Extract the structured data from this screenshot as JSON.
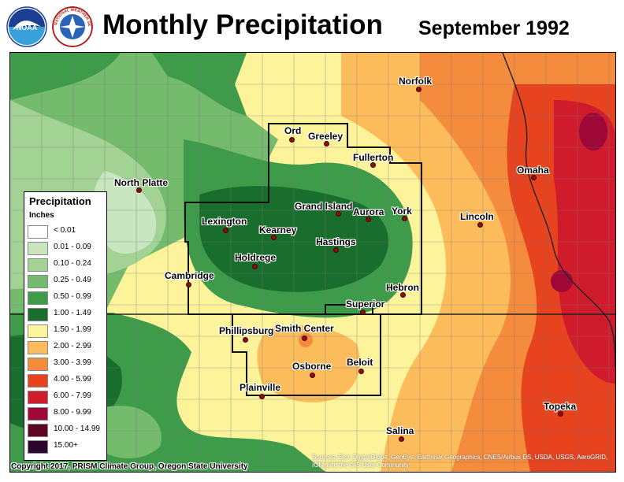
{
  "header": {
    "title": "Monthly Precipitation",
    "subtitle": "September 1992"
  },
  "logos": {
    "left_icon": "noaa-logo",
    "right_icon": "national-weather-service-logo",
    "noaa_text": "NOAA",
    "nws_text": "NATIONAL WEATHER SERVICE"
  },
  "colors": {
    "lt001": "#ffffff",
    "r0_01": "#c8e6c0",
    "r0_10": "#a3d394",
    "r0_25": "#74bb6d",
    "r0_50": "#3e9b4a",
    "r1_00": "#1a6e2d",
    "r1_50": "#fdf39a",
    "r2_00": "#fdbc5c",
    "r3_00": "#f58b3d",
    "r4_00": "#e8431f",
    "r6_00": "#cf1b2c",
    "r8_00": "#9e0836",
    "r10_00": "#5e0722",
    "r15_00": "#2e0530"
  },
  "legend": {
    "title": "Precipitation",
    "units": "Inches",
    "items": [
      {
        "label": "< 0.01",
        "color": "#ffffff"
      },
      {
        "label": "0.01 - 0.09",
        "color": "#c8e6c0"
      },
      {
        "label": "0.10 - 0.24",
        "color": "#a3d394"
      },
      {
        "label": "0.25 - 0.49",
        "color": "#74bb6d"
      },
      {
        "label": "0.50 - 0.99",
        "color": "#3e9b4a"
      },
      {
        "label": "1.00 - 1.49",
        "color": "#1a6e2d"
      },
      {
        "label": "1.50 - 1.99",
        "color": "#fdf39a"
      },
      {
        "label": "2.00 - 2.99",
        "color": "#fdbc5c"
      },
      {
        "label": "3.00 - 3.99",
        "color": "#f58b3d"
      },
      {
        "label": "4.00 - 5.99",
        "color": "#e8431f"
      },
      {
        "label": "6.00 - 7.99",
        "color": "#cf1b2c"
      },
      {
        "label": "8.00 - 9.99",
        "color": "#9e0836"
      },
      {
        "label": "10.00 - 14.99",
        "color": "#5e0722"
      },
      {
        "label": "15.00+",
        "color": "#2e0530"
      }
    ]
  },
  "cities": [
    {
      "name": "Norfolk"
    },
    {
      "name": "Ord"
    },
    {
      "name": "Greeley"
    },
    {
      "name": "Fullerton"
    },
    {
      "name": "Omaha"
    },
    {
      "name": "North Platte"
    },
    {
      "name": "Grand Island"
    },
    {
      "name": "Aurora"
    },
    {
      "name": "York"
    },
    {
      "name": "Lincoln"
    },
    {
      "name": "Lexington"
    },
    {
      "name": "Kearney"
    },
    {
      "name": "Hastings"
    },
    {
      "name": "Holdrege"
    },
    {
      "name": "Cambridge"
    },
    {
      "name": "Hebron"
    },
    {
      "name": "Superior"
    },
    {
      "name": "Phillipsburg"
    },
    {
      "name": "Smith Center"
    },
    {
      "name": "Osborne"
    },
    {
      "name": "Beloit"
    },
    {
      "name": "Plainville"
    },
    {
      "name": "Topeka"
    },
    {
      "name": "Salina"
    }
  ],
  "footer": {
    "copyright": "Copyright 2017, PRISM Climate Group, Oregon State University",
    "sources": "Sources: Esri, DigitalGlobe, GeoEye, Earthstar Geographics, CNES/Airbus DS, USDA, USGS, AeroGRID, IGN, and the GIS User Community"
  }
}
